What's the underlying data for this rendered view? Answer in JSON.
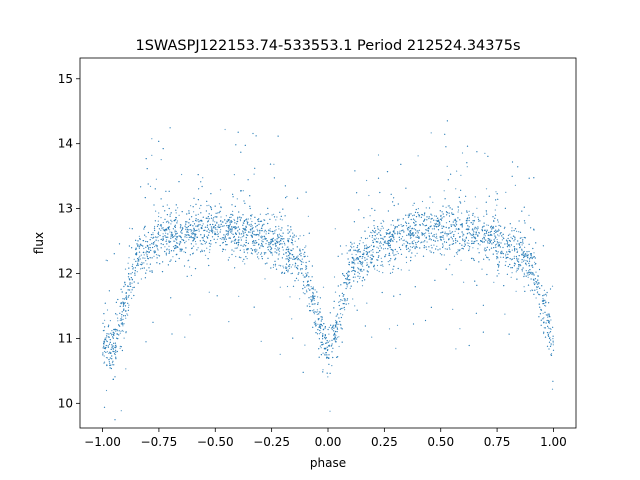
{
  "chart_data": {
    "type": "scatter",
    "title": "1SWASPJ122153.74-533553.1 Period 212524.34375s",
    "xlabel": "phase",
    "ylabel": "flux",
    "xlim": [
      -1.1,
      1.1
    ],
    "ylim": [
      9.62,
      15.32
    ],
    "xticks": [
      "−1.00",
      "−0.75",
      "−0.50",
      "−0.25",
      "0.00",
      "0.25",
      "0.50",
      "0.75",
      "1.00"
    ],
    "yticks": [
      "10",
      "11",
      "12",
      "13",
      "14",
      "15"
    ],
    "grid": false,
    "color": "#1f77b4",
    "series": [
      {
        "profile": {
          "x": [
            -1.0,
            -0.95,
            -0.9,
            -0.85,
            -0.75,
            -0.5,
            -0.3,
            -0.2,
            -0.1,
            -0.05,
            0.0,
            0.05,
            0.1,
            0.2,
            0.3,
            0.5,
            0.7,
            0.8,
            0.9,
            0.95,
            1.0
          ],
          "y": [
            10.9,
            10.8,
            11.5,
            12.2,
            12.55,
            12.7,
            12.55,
            12.4,
            12.05,
            11.3,
            10.8,
            11.3,
            12.05,
            12.4,
            12.55,
            12.7,
            12.55,
            12.4,
            12.2,
            11.5,
            10.9
          ]
        }
      }
    ]
  }
}
